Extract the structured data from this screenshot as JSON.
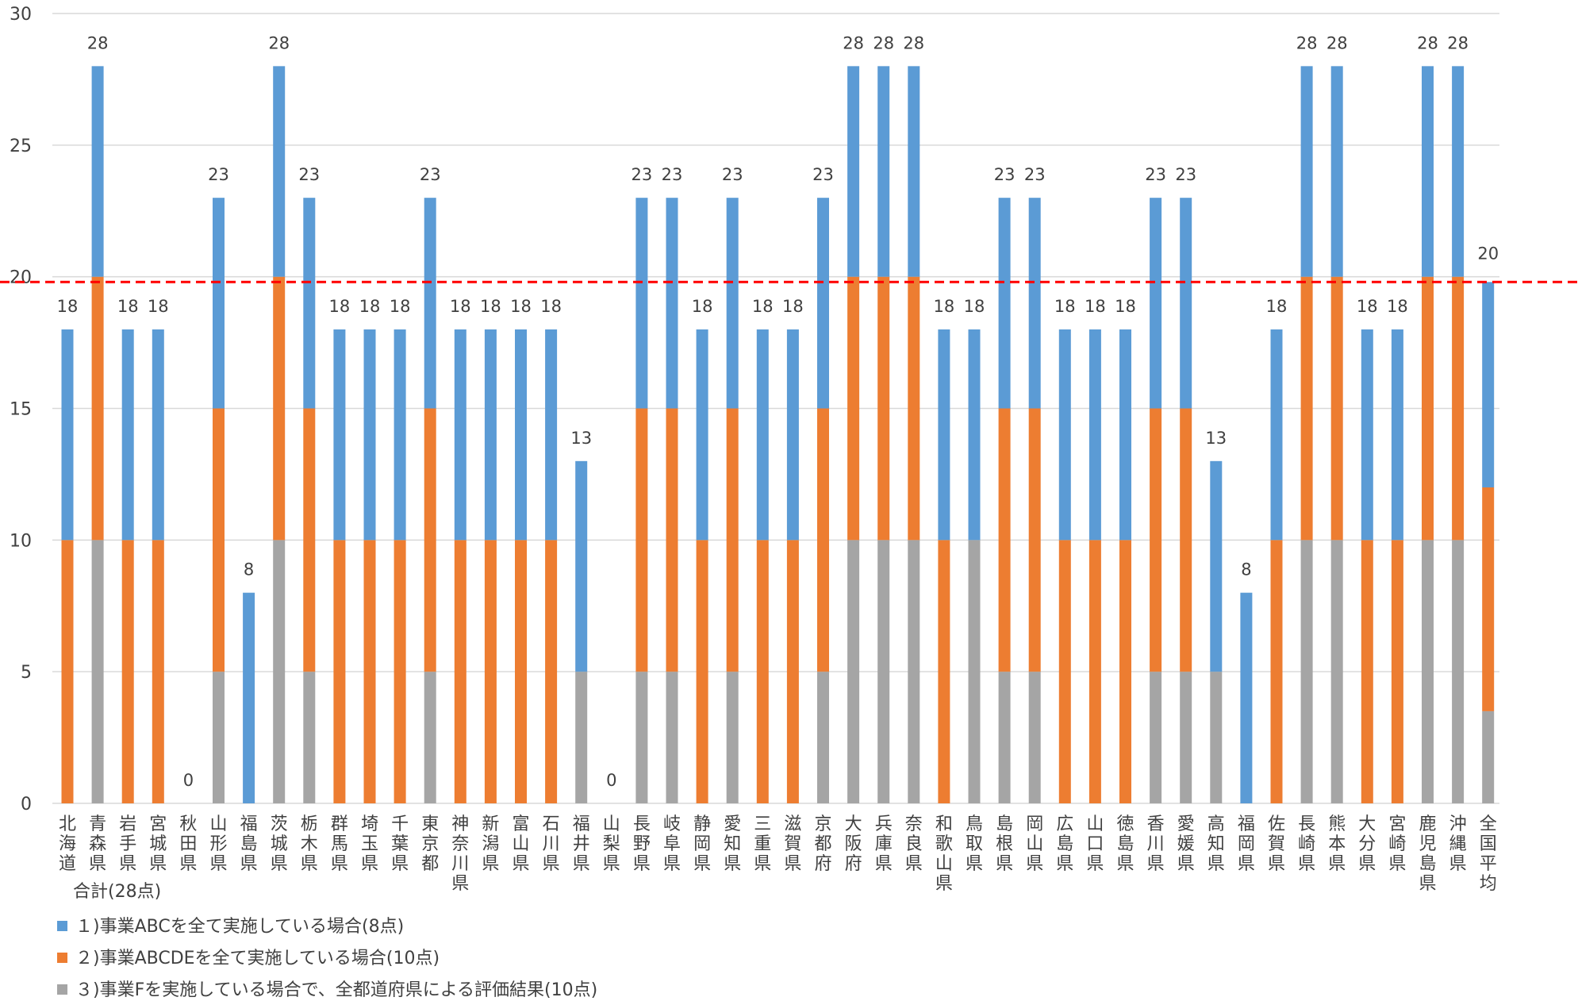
{
  "chart_data": {
    "type": "bar",
    "stacked": true,
    "ylim": [
      0,
      30
    ],
    "yticks": [
      0,
      5,
      10,
      15,
      20,
      25,
      30
    ],
    "grid": true,
    "legend_position": "bottom-left",
    "reference_line": {
      "value": 19.8,
      "color": "#ff0000",
      "style": "dashed"
    },
    "categories": [
      "北海道",
      "青森県",
      "岩手県",
      "宮城県",
      "秋田県",
      "山形県",
      "福島県",
      "茨城県",
      "栃木県",
      "群馬県",
      "埼玉県",
      "千葉県",
      "東京都",
      "神奈川県",
      "新潟県",
      "富山県",
      "石川県",
      "福井県",
      "山梨県",
      "長野県",
      "岐阜県",
      "静岡県",
      "愛知県",
      "三重県",
      "滋賀県",
      "京都府",
      "大阪府",
      "兵庫県",
      "奈良県",
      "和歌山県",
      "鳥取県",
      "島根県",
      "岡山県",
      "広島県",
      "山口県",
      "徳島県",
      "香川県",
      "愛媛県",
      "高知県",
      "福岡県",
      "佐賀県",
      "長崎県",
      "熊本県",
      "大分県",
      "宮崎県",
      "鹿児島県",
      "沖縄県",
      "全国平均"
    ],
    "series": [
      {
        "name": "３)事業Fを実施している場合で、全都道府県による評価結果(10点)",
        "color": "#a5a5a5",
        "values": [
          0,
          10,
          0,
          0,
          0,
          5,
          0,
          10,
          5,
          0,
          0,
          0,
          5,
          0,
          0,
          0,
          0,
          5,
          0,
          5,
          5,
          0,
          5,
          0,
          0,
          5,
          10,
          10,
          10,
          0,
          10,
          5,
          5,
          0,
          0,
          0,
          5,
          5,
          5,
          0,
          0,
          10,
          10,
          0,
          0,
          10,
          10,
          3.5
        ]
      },
      {
        "name": "２)事業ABCDEを全て実施している場合(10点)",
        "color": "#ed7d31",
        "values": [
          10,
          10,
          10,
          10,
          0,
          10,
          0,
          10,
          10,
          10,
          10,
          10,
          10,
          10,
          10,
          10,
          10,
          0,
          0,
          10,
          10,
          10,
          10,
          10,
          10,
          10,
          10,
          10,
          10,
          10,
          0,
          10,
          10,
          10,
          10,
          10,
          10,
          10,
          0,
          0,
          10,
          10,
          10,
          10,
          10,
          10,
          10,
          8.5
        ]
      },
      {
        "name": "１)事業ABCを全て実施している場合(8点)",
        "color": "#5b9bd5",
        "values": [
          8,
          8,
          8,
          8,
          0,
          8,
          8,
          8,
          8,
          8,
          8,
          8,
          8,
          8,
          8,
          8,
          8,
          8,
          0,
          8,
          8,
          8,
          8,
          8,
          8,
          8,
          8,
          8,
          8,
          8,
          8,
          8,
          8,
          8,
          8,
          8,
          8,
          8,
          8,
          8,
          8,
          8,
          8,
          8,
          8,
          8,
          8,
          7.8
        ]
      }
    ],
    "totals": [
      "18",
      "28",
      "18",
      "18",
      "0",
      "23",
      "8",
      "28",
      "23",
      "18",
      "18",
      "18",
      "23",
      "18",
      "18",
      "18",
      "18",
      "13",
      "0",
      "23",
      "23",
      "18",
      "23",
      "18",
      "18",
      "23",
      "28",
      "28",
      "28",
      "18",
      "18",
      "23",
      "23",
      "18",
      "18",
      "18",
      "23",
      "23",
      "13",
      "8",
      "18",
      "28",
      "28",
      "18",
      "18",
      "28",
      "28",
      "20"
    ],
    "xlabel_extra": "合計(28点)",
    "legend": [
      {
        "label": "１)事業ABCを全て実施している場合(8点)",
        "color": "#5b9bd5"
      },
      {
        "label": "２)事業ABCDEを全て実施している場合(10点)",
        "color": "#ed7d31"
      },
      {
        "label": "３)事業Fを実施している場合で、全都道府県による評価結果(10点)",
        "color": "#a5a5a5"
      }
    ]
  }
}
